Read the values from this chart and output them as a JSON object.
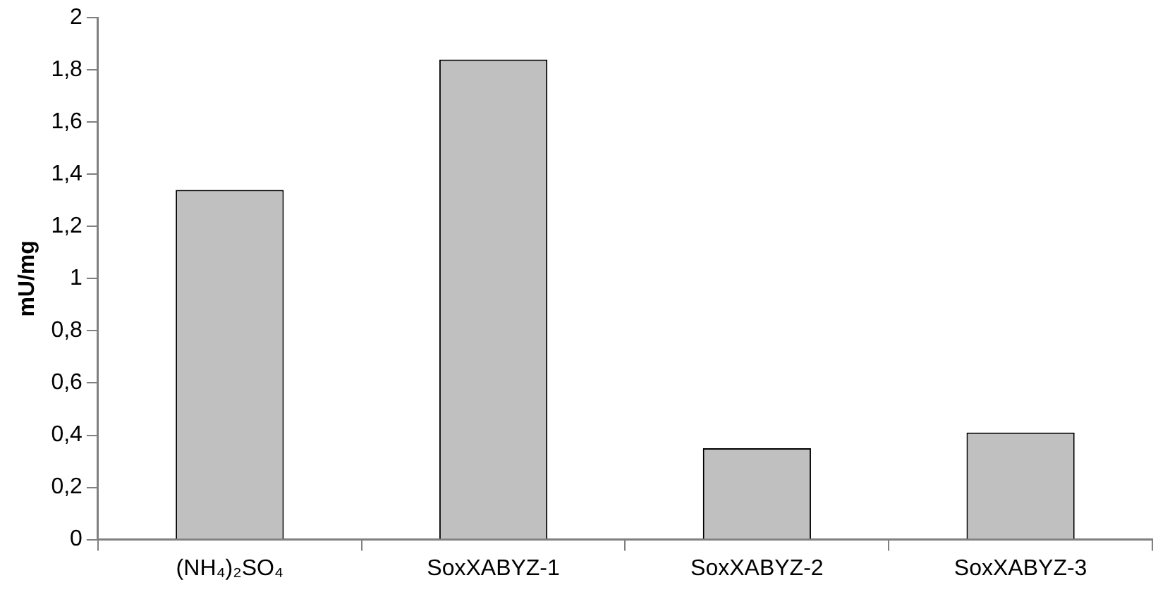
{
  "chart_data": {
    "type": "bar",
    "ylabel": "mU/mg",
    "categories": [
      "(NH₄)₂SO₄",
      "SoxXABYZ-1",
      "SoxXABYZ-2",
      "SoxXABYZ-3"
    ],
    "values": [
      1.34,
      1.84,
      0.35,
      0.41
    ],
    "color": "#c0c0c0",
    "ylim": [
      0,
      2
    ],
    "yticks": [
      0,
      {
        "value": 0.2,
        "label": "0,2"
      },
      {
        "value": 0.4,
        "label": "0,4"
      },
      {
        "value": 0.6,
        "label": "0,6"
      },
      {
        "value": 0.8,
        "label": "0,8"
      },
      1,
      {
        "value": 1.2,
        "label": "1,2"
      },
      {
        "value": 1.4,
        "label": "1,4"
      },
      {
        "value": 1.6,
        "label": "1,6"
      },
      {
        "value": 1.8,
        "label": "1,8"
      },
      2
    ],
    "grid": false,
    "legend": false
  }
}
